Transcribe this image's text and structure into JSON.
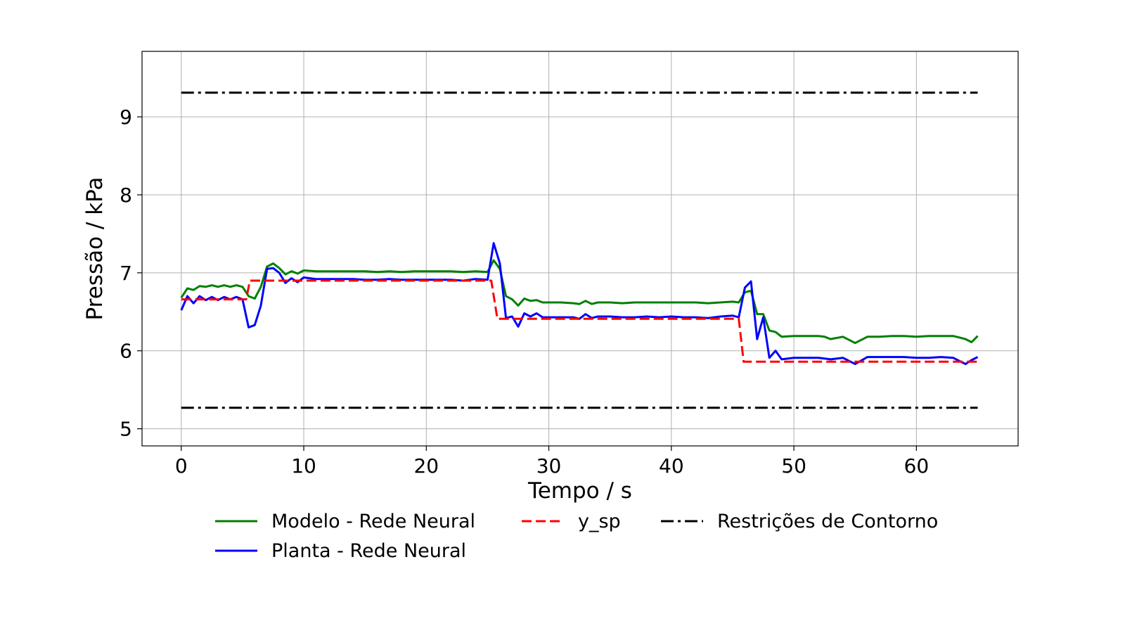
{
  "chart_data": {
    "type": "line",
    "xlabel": "Tempo / s",
    "ylabel": "Pressão / kPa",
    "xlim": [
      -3.2,
      68.3
    ],
    "ylim": [
      4.78,
      9.84
    ],
    "xticks": [
      0,
      10,
      20,
      30,
      40,
      50,
      60
    ],
    "yticks": [
      5,
      6,
      7,
      8,
      9
    ],
    "grid": true,
    "legend_position": "bottom",
    "series": [
      {
        "name": "Modelo - Rede Neural",
        "color": "#008000",
        "style": "solid",
        "x": [
          0,
          0.5,
          1,
          1.5,
          2,
          2.5,
          3,
          3.5,
          4,
          4.5,
          5,
          5.5,
          6,
          6.5,
          7,
          7.5,
          8,
          8.5,
          9,
          9.5,
          10,
          11,
          12,
          13,
          14,
          15,
          16,
          17,
          18,
          19,
          20,
          21,
          22,
          23,
          24,
          25,
          25.5,
          26,
          26.5,
          27,
          27.5,
          28,
          28.5,
          29,
          29.5,
          30,
          31,
          32,
          32.5,
          33,
          33.5,
          34,
          35,
          36,
          37,
          38,
          39,
          40,
          41,
          42,
          43,
          44,
          45,
          45.5,
          46,
          46.5,
          47,
          47.5,
          48,
          48.5,
          49,
          50,
          51,
          52,
          52.5,
          53,
          54,
          55,
          56,
          57,
          58,
          59,
          60,
          61,
          62,
          63,
          64,
          64.5,
          65
        ],
        "y": [
          6.68,
          6.8,
          6.78,
          6.83,
          6.82,
          6.84,
          6.82,
          6.84,
          6.82,
          6.84,
          6.82,
          6.7,
          6.67,
          6.82,
          7.08,
          7.12,
          7.06,
          6.98,
          7.02,
          6.99,
          7.03,
          7.02,
          7.02,
          7.02,
          7.02,
          7.02,
          7.01,
          7.02,
          7.01,
          7.02,
          7.02,
          7.02,
          7.02,
          7.01,
          7.02,
          7.01,
          7.16,
          7.05,
          6.7,
          6.66,
          6.58,
          6.67,
          6.64,
          6.65,
          6.62,
          6.62,
          6.62,
          6.61,
          6.6,
          6.64,
          6.6,
          6.62,
          6.62,
          6.61,
          6.62,
          6.62,
          6.62,
          6.62,
          6.62,
          6.62,
          6.61,
          6.62,
          6.63,
          6.62,
          6.75,
          6.77,
          6.47,
          6.47,
          6.26,
          6.24,
          6.18,
          6.19,
          6.19,
          6.19,
          6.18,
          6.15,
          6.18,
          6.1,
          6.18,
          6.18,
          6.19,
          6.19,
          6.18,
          6.19,
          6.19,
          6.19,
          6.15,
          6.11,
          6.19
        ]
      },
      {
        "name": "Planta - Rede Neural",
        "color": "#0000ff",
        "style": "solid",
        "x": [
          0,
          0.5,
          1,
          1.5,
          2,
          2.5,
          3,
          3.5,
          4,
          4.5,
          5,
          5.5,
          6,
          6.5,
          7,
          7.5,
          8,
          8.5,
          9,
          9.5,
          10,
          11,
          12,
          13,
          14,
          15,
          16,
          17,
          18,
          19,
          20,
          21,
          22,
          23,
          24,
          25,
          25.5,
          26,
          26.5,
          27,
          27.5,
          28,
          28.5,
          29,
          29.5,
          30,
          31,
          32,
          32.5,
          33,
          33.5,
          34,
          35,
          36,
          37,
          38,
          39,
          40,
          41,
          42,
          43,
          44,
          45,
          45.5,
          46,
          46.5,
          47,
          47.5,
          48,
          48.5,
          49,
          50,
          51,
          52,
          52.5,
          53,
          54,
          55,
          56,
          57,
          58,
          59,
          60,
          61,
          62,
          63,
          64,
          64.5,
          65
        ],
        "y": [
          6.52,
          6.7,
          6.61,
          6.7,
          6.65,
          6.69,
          6.65,
          6.69,
          6.66,
          6.69,
          6.66,
          6.3,
          6.33,
          6.58,
          7.05,
          7.06,
          7.0,
          6.87,
          6.93,
          6.88,
          6.94,
          6.92,
          6.92,
          6.92,
          6.92,
          6.91,
          6.91,
          6.92,
          6.91,
          6.91,
          6.91,
          6.91,
          6.91,
          6.9,
          6.92,
          6.91,
          7.38,
          7.12,
          6.42,
          6.44,
          6.31,
          6.48,
          6.44,
          6.48,
          6.43,
          6.43,
          6.43,
          6.43,
          6.41,
          6.47,
          6.42,
          6.44,
          6.44,
          6.43,
          6.43,
          6.44,
          6.43,
          6.44,
          6.43,
          6.43,
          6.42,
          6.44,
          6.45,
          6.43,
          6.81,
          6.89,
          6.15,
          6.43,
          5.91,
          6.0,
          5.89,
          5.91,
          5.91,
          5.91,
          5.9,
          5.89,
          5.91,
          5.83,
          5.92,
          5.92,
          5.92,
          5.92,
          5.91,
          5.91,
          5.92,
          5.91,
          5.83,
          5.88,
          5.92
        ]
      },
      {
        "name": "y_sp",
        "color": "#ff0000",
        "style": "dashed",
        "x": [
          0,
          5.3,
          5.6,
          25.3,
          25.8,
          45.5,
          45.9,
          65
        ],
        "y": [
          6.66,
          6.66,
          6.9,
          6.9,
          6.41,
          6.41,
          5.86,
          5.86
        ]
      },
      {
        "name": "Restrições de Contorno",
        "color": "#000000",
        "style": "dashdot",
        "x": [
          0,
          65
        ],
        "y": [
          9.31,
          9.31
        ]
      },
      {
        "name": "",
        "color": "#000000",
        "style": "dashdot",
        "x": [
          0,
          65
        ],
        "y": [
          5.27,
          5.27
        ]
      }
    ]
  }
}
